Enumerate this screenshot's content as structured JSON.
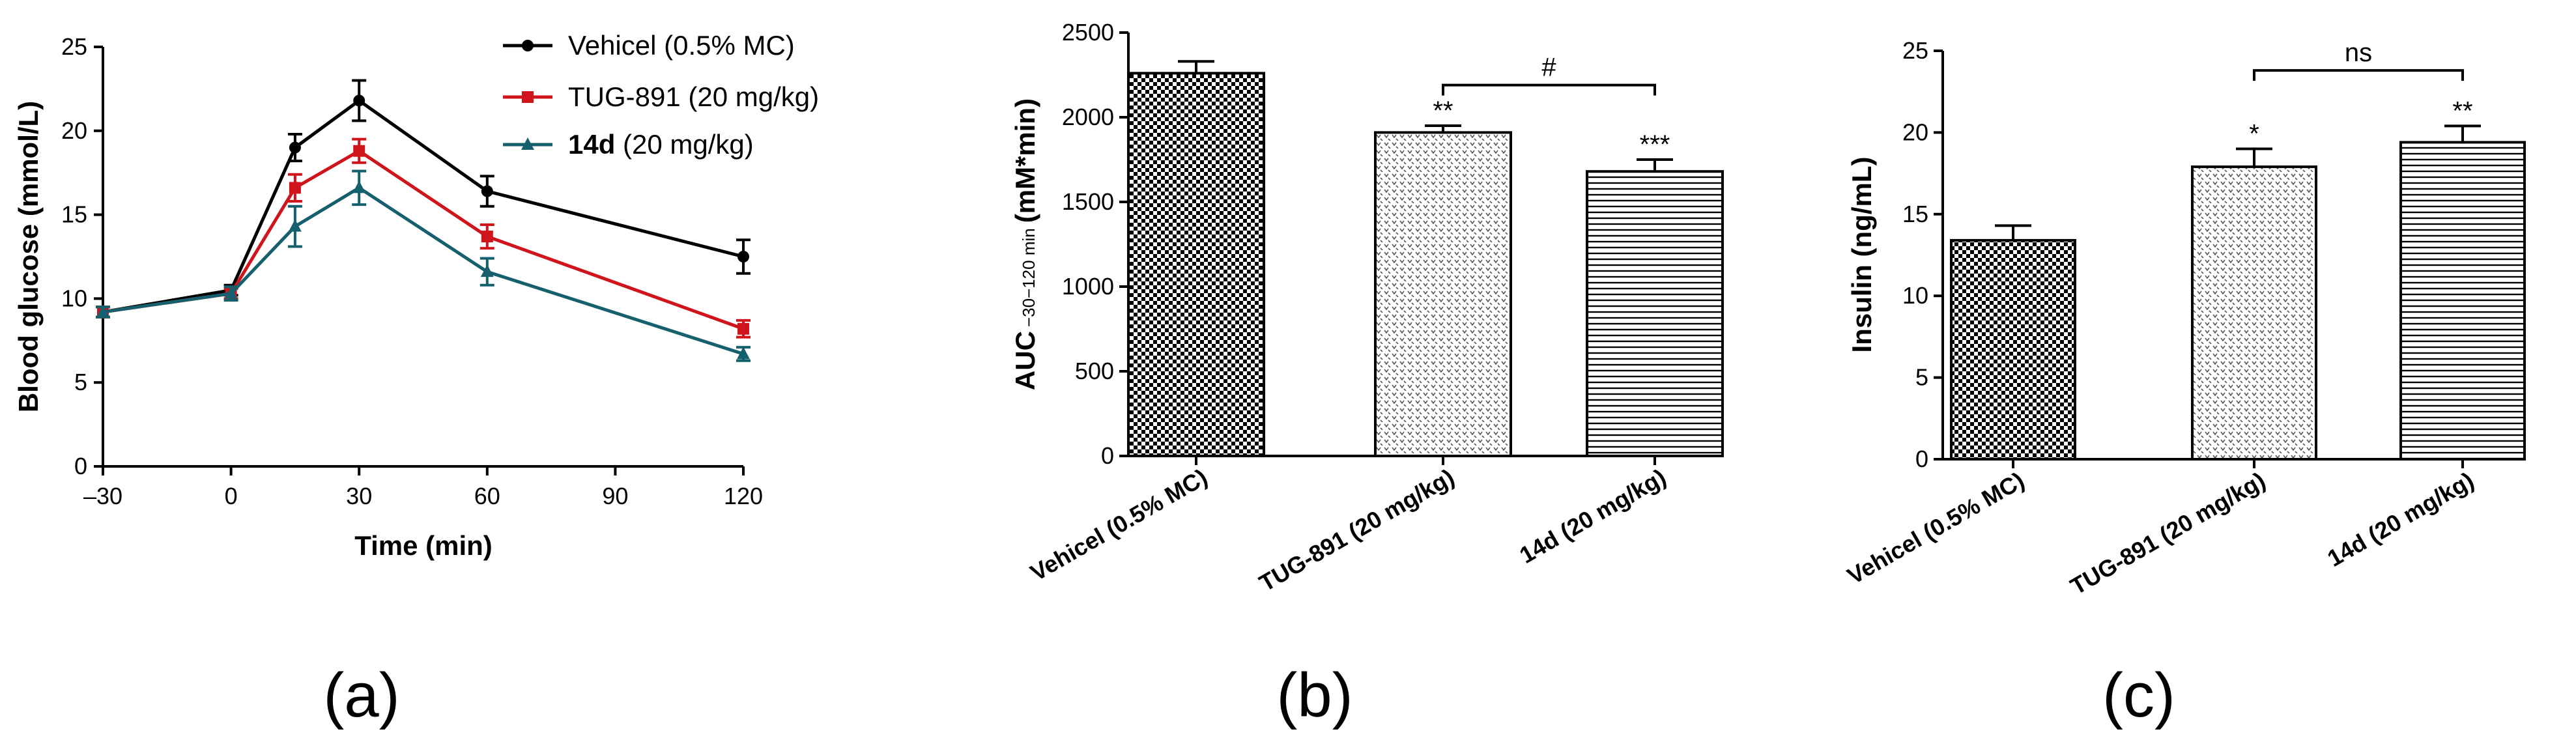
{
  "colors": {
    "vehicel": "#000000",
    "tug891": "#d0141b",
    "compound14d": "#16606e"
  },
  "chart_data": [
    {
      "type": "line",
      "panel_label": "(a)",
      "xlabel": "Time (min)",
      "ylabel": "Blood glucose (mmol/L)",
      "x_ticks": [
        "–30",
        "0",
        "30",
        "60",
        "90",
        "120"
      ],
      "y_ticks": [
        "0",
        "5",
        "10",
        "15",
        "20",
        "25"
      ],
      "xlim": [
        -30,
        120
      ],
      "ylim": [
        0,
        25
      ],
      "legend_position": "top-right",
      "series": [
        {
          "name": "Vehicel  (0.5% MC)",
          "legend_bold": "",
          "legend_rest": "Vehicel  (0.5% MC)",
          "color": "#000000",
          "marker": "circle",
          "x": [
            -30,
            0,
            15,
            30,
            60,
            120
          ],
          "y": [
            9.2,
            10.5,
            19.0,
            21.8,
            16.4,
            12.5
          ],
          "err": [
            0.3,
            0.3,
            0.8,
            1.2,
            0.9,
            1.0
          ]
        },
        {
          "name": "TUG-891 (20 mg/kg)",
          "legend_bold": "",
          "legend_rest": "TUG-891 (20 mg/kg)",
          "color": "#d0141b",
          "marker": "square",
          "x": [
            -30,
            0,
            15,
            30,
            60,
            120
          ],
          "y": [
            9.2,
            10.3,
            16.6,
            18.8,
            13.7,
            8.2
          ],
          "err": [
            0.3,
            0.3,
            0.8,
            0.7,
            0.7,
            0.5
          ]
        },
        {
          "name": "14d (20 mg/kg)",
          "legend_bold": "14d",
          "legend_rest": " (20 mg/kg)",
          "color": "#16606e",
          "marker": "triangle",
          "x": [
            -30,
            0,
            15,
            30,
            60,
            120
          ],
          "y": [
            9.2,
            10.3,
            14.3,
            16.6,
            11.6,
            6.7
          ],
          "err": [
            0.3,
            0.4,
            1.2,
            1.0,
            0.8,
            0.4
          ]
        }
      ]
    },
    {
      "type": "bar",
      "panel_label": "(b)",
      "ylabel_main": "AUC",
      "ylabel_sub": "−30−120 min",
      "ylabel_unit": "(mM*min)",
      "categories": [
        "Vehicel  (0.5% MC)",
        "TUG-891 (20 mg/kg)",
        "14d (20 mg/kg)"
      ],
      "values": [
        2260,
        1910,
        1680
      ],
      "err": [
        70,
        40,
        70
      ],
      "patterns": [
        "checker",
        "dots",
        "hlines"
      ],
      "significance": [
        "",
        "**",
        "***"
      ],
      "comparison": {
        "from": 1,
        "to": 2,
        "label": "#",
        "y": 2190
      },
      "y_ticks": [
        "0",
        "500",
        "1000",
        "1500",
        "2000",
        "2500"
      ],
      "ylim": [
        0,
        2500
      ]
    },
    {
      "type": "bar",
      "panel_label": "(c)",
      "ylabel": "Insulin (ng/mL)",
      "categories": [
        "Vehicel  (0.5% MC)",
        "TUG-891 (20 mg/kg)",
        "14d (20 mg/kg)"
      ],
      "values": [
        13.4,
        17.9,
        19.4
      ],
      "err": [
        0.9,
        1.1,
        1.0
      ],
      "patterns": [
        "checker",
        "dots",
        "hlines"
      ],
      "significance": [
        "",
        "*",
        "**"
      ],
      "comparison": {
        "from": 1,
        "to": 2,
        "label": "ns",
        "y": 23.8
      },
      "y_ticks": [
        "0",
        "5",
        "10",
        "15",
        "20",
        "25"
      ],
      "ylim": [
        0,
        25
      ]
    }
  ]
}
